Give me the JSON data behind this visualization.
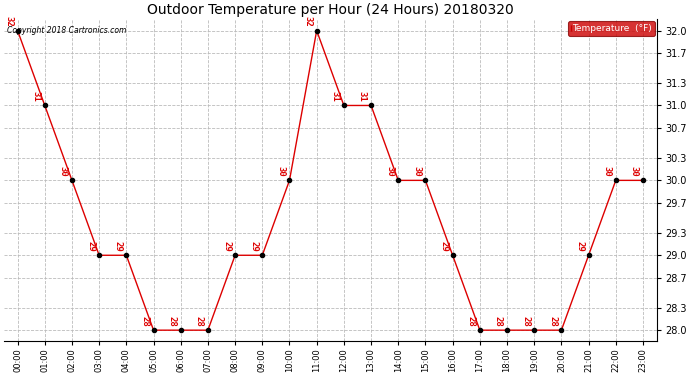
{
  "title": "Outdoor Temperature per Hour (24 Hours) 20180320",
  "copyright_text": "Copyright 2018 Cartronics.com",
  "legend_label": "Temperature  (°F)",
  "hours": [
    0,
    1,
    2,
    3,
    4,
    5,
    6,
    7,
    8,
    9,
    10,
    11,
    12,
    13,
    14,
    15,
    16,
    17,
    18,
    19,
    20,
    21,
    22,
    23
  ],
  "hour_labels": [
    "00:00",
    "01:00",
    "02:00",
    "03:00",
    "04:00",
    "05:00",
    "06:00",
    "07:00",
    "08:00",
    "09:00",
    "10:00",
    "11:00",
    "12:00",
    "13:00",
    "14:00",
    "15:00",
    "16:00",
    "17:00",
    "18:00",
    "19:00",
    "20:00",
    "21:00",
    "22:00",
    "23:00"
  ],
  "temperatures": [
    32,
    31,
    30,
    29,
    29,
    28,
    28,
    28,
    29,
    29,
    30,
    32,
    31,
    31,
    30,
    30,
    29,
    28,
    28,
    28,
    28,
    29,
    30,
    30
  ],
  "ylim_min": 27.85,
  "ylim_max": 32.15,
  "yticks": [
    28.0,
    28.3,
    28.7,
    29.0,
    29.3,
    29.7,
    30.0,
    30.3,
    30.7,
    31.0,
    31.3,
    31.7,
    32.0
  ],
  "line_color": "#dd0000",
  "marker_color": "#000000",
  "grid_color": "#bbbbbb",
  "background_color": "#ffffff",
  "label_color": "#dd0000",
  "legend_bg": "#cc0000",
  "legend_text_color": "#ffffff",
  "figwidth": 6.9,
  "figheight": 3.75,
  "dpi": 100
}
